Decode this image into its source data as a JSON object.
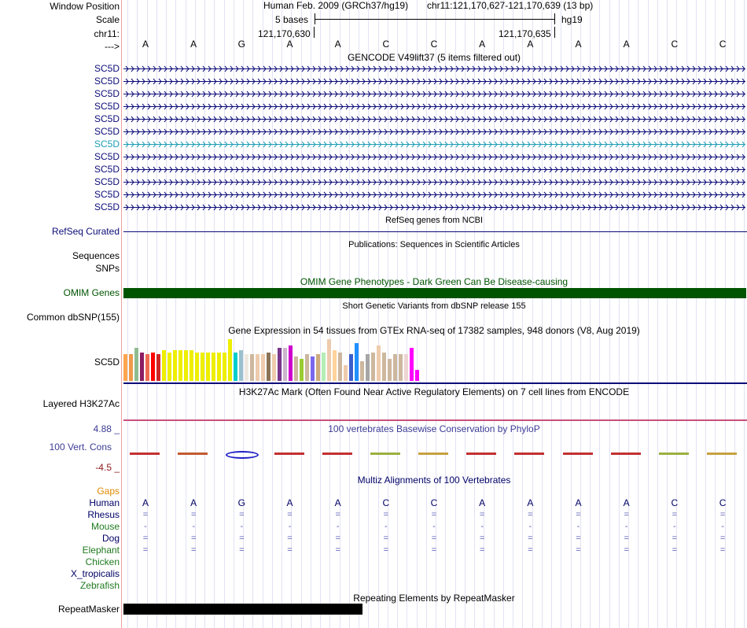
{
  "header": {
    "window_position_label": "Window Position",
    "scale_label": "Scale",
    "chrom_label": "chr11:",
    "arrow_label": "--->",
    "assembly": "Human Feb. 2009 (GRCh37/hg19)",
    "position": "chr11:121,170,627-121,170,639 (13 bp)",
    "scale_text": "5 bases",
    "db": "hg19",
    "coord_left": "121,170,630",
    "coord_right": "121,170,635"
  },
  "bases": [
    "A",
    "A",
    "G",
    "A",
    "A",
    "C",
    "C",
    "A",
    "A",
    "A",
    "A",
    "C",
    "C"
  ],
  "gencode": {
    "title": "GENCODE V49lift37 (5 items filtered out)",
    "rows": [
      "SC5D",
      "SC5D",
      "SC5D",
      "SC5D",
      "SC5D",
      "SC5D",
      "SC5D",
      "SC5D",
      "SC5D",
      "SC5D",
      "SC5D",
      "SC5D"
    ],
    "highlight_index": 6,
    "color": "#0c0c78",
    "highlight_color": "#1e9eb5"
  },
  "refseq": {
    "title": "RefSeq genes from NCBI",
    "label": "RefSeq Curated"
  },
  "publications": {
    "title": "Publications: Sequences in Scientific Articles",
    "label_seq": "Sequences",
    "label_snp": "SNPs"
  },
  "omim": {
    "title": "OMIM Gene Phenotypes - Dark Green Can Be Disease-causing",
    "label": "OMIM Genes",
    "color": "#005400"
  },
  "dbsnp": {
    "title": "Short Genetic Variants from dbSNP release 155",
    "label": "Common dbSNP(155)"
  },
  "gtex": {
    "title": "Gene Expression in 54 tissues from GTEx RNA-seq of 17382 samples, 948 donors (V8, Aug 2019)",
    "label": "SC5D",
    "levels": [
      0.6,
      0.6,
      0.75,
      0.65,
      0.6,
      0.65,
      0.6,
      0.7,
      0.65,
      0.7,
      0.7,
      0.7,
      0.7,
      0.65,
      0.65,
      0.65,
      0.65,
      0.65,
      0.65,
      0.95,
      0.65,
      0.7,
      0.6,
      0.6,
      0.6,
      0.6,
      0.65,
      0.6,
      0.75,
      0.75,
      0.8,
      0.55,
      0.5,
      0.6,
      0.55,
      0.6,
      0.65,
      0.95,
      0.7,
      0.65,
      0.35,
      0.6,
      0.85,
      0.45,
      0.6,
      0.65,
      0.8,
      0.65,
      0.5,
      0.6,
      0.6,
      0.6,
      0.75,
      0.25
    ],
    "colors": [
      "#ffa54f",
      "#ee9a49",
      "#8fbc8f",
      "#8b1c62",
      "#ee6a50",
      "#ff0000",
      "#cd2626",
      "#eeee00",
      "#eeee00",
      "#eeee00",
      "#eeee00",
      "#eeee00",
      "#eeee00",
      "#eeee00",
      "#eeee00",
      "#eeee00",
      "#eeee00",
      "#eeee00",
      "#eeee00",
      "#eeee00",
      "#00cdcd",
      "#9ac0cd",
      "#ede9e0",
      "#cdb79e",
      "#eecbad",
      "#eecbad",
      "#8b7355",
      "#eecbad",
      "#7a378b",
      "#cdb5cd",
      "#cd00cd",
      "#cdb79e",
      "#9acd32",
      "#cdb79e",
      "#7a67ee",
      "#cdaa7d",
      "#b4eeb4",
      "#eecbad",
      "#ffd39b",
      "#cdb79e",
      "#eecbad",
      "#3a5fcd",
      "#1e90ff",
      "#cdb79e",
      "#a6a6a6",
      "#cdb79e",
      "#eecbad",
      "#cdb79e",
      "#cdb79e",
      "#cdb79e",
      "#cdb79e",
      "#eed5d2",
      "#ff00ff",
      "#ff00ff"
    ]
  },
  "h3k27ac": {
    "title": "H3K27Ac Mark (Often Found Near Active Regulatory Elements) on 7 cell lines from ENCODE",
    "label": "Layered H3K27Ac"
  },
  "conservation": {
    "title": "100 vertebrates Basewise Conservation by PhyloP",
    "label": "100 Vert. Cons",
    "max": "4.88 _",
    "min": "-4.5 _",
    "color": "#3c3c96"
  },
  "multiz": {
    "title": "Multiz Alignments of 100 Vertebrates",
    "gaps_label": "Gaps",
    "species": [
      {
        "name": "Human",
        "color": "#000066",
        "row": "A A G A A C C A A A A C C"
      },
      {
        "name": "Rhesus",
        "color": "#000066",
        "row": "= = = = = = = = = = = = ="
      },
      {
        "name": "Mouse",
        "color": "#1f7a1f",
        "row": "- - - - - - - - - - - - -"
      },
      {
        "name": "Dog",
        "color": "#000066",
        "row": "= = = = = = = = = = = = ="
      },
      {
        "name": "Elephant",
        "color": "#1f7a1f",
        "row": "= = = = = = = = = = = = ="
      },
      {
        "name": "Chicken",
        "color": "#1f7a1f",
        "row": ""
      },
      {
        "name": "X_tropicalis",
        "color": "#000066",
        "row": ""
      },
      {
        "name": "Zebrafish",
        "color": "#1f7a1f",
        "row": ""
      }
    ]
  },
  "repeatmasker": {
    "title": "Repeating Elements by RepeatMasker",
    "label": "RepeatMasker"
  }
}
